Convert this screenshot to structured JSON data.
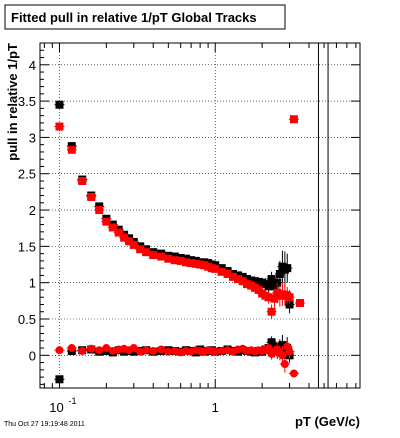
{
  "chart_data": {
    "type": "scatter",
    "title": "Fitted pull in relative 1/pT  Global Tracks",
    "xlabel": "pT (GeV/c)",
    "ylabel": "pull in relative 1/pT",
    "xscale": "log",
    "xlim": [
      0.075,
      8.5
    ],
    "ylim": [
      -0.45,
      4.3
    ],
    "grid": true,
    "timestamp": "Thu Oct 27 19:19:48 2011",
    "x_ticks": [
      {
        "value": 0.1,
        "label": "10",
        "exp": "-1"
      },
      {
        "value": 1,
        "label": "1",
        "exp": ""
      }
    ],
    "y_ticks": [
      {
        "value": 0,
        "label": "0"
      },
      {
        "value": 0.5,
        "label": "0.5"
      },
      {
        "value": 1,
        "label": "1"
      },
      {
        "value": 1.5,
        "label": "1.5"
      },
      {
        "value": 2,
        "label": "2"
      },
      {
        "value": 2.5,
        "label": "2.5"
      },
      {
        "value": 3,
        "label": "3"
      },
      {
        "value": 3.5,
        "label": "3.5"
      },
      {
        "value": 4,
        "label": "4"
      }
    ],
    "vertical_lines_x": [
      4.6,
      5.3
    ],
    "series": [
      {
        "color": "#000000",
        "role": "width",
        "x": [
          0.1,
          0.12,
          0.14,
          0.16,
          0.18,
          0.2,
          0.22,
          0.24,
          0.26,
          0.28,
          0.3,
          0.33,
          0.36,
          0.4,
          0.45,
          0.5,
          0.55,
          0.6,
          0.65,
          0.7,
          0.75,
          0.8,
          0.85,
          0.9,
          0.95,
          1.0,
          1.1,
          1.2,
          1.3,
          1.4,
          1.5,
          1.6,
          1.7,
          1.8,
          1.9,
          2.0,
          2.1,
          2.2,
          2.3,
          2.4,
          2.5,
          2.6,
          2.7,
          2.8,
          2.9,
          3.0
        ],
        "y": [
          3.45,
          2.88,
          2.42,
          2.2,
          2.05,
          1.88,
          1.8,
          1.73,
          1.66,
          1.61,
          1.56,
          1.5,
          1.46,
          1.42,
          1.4,
          1.37,
          1.36,
          1.34,
          1.33,
          1.31,
          1.3,
          1.28,
          1.28,
          1.27,
          1.25,
          1.24,
          1.2,
          1.16,
          1.12,
          1.1,
          1.08,
          1.05,
          1.03,
          1.02,
          1.01,
          1.0,
          0.98,
          0.95,
          1.05,
          0.95,
          1.0,
          1.12,
          1.22,
          1.18,
          1.2,
          0.7
        ],
        "yerr": [
          0.04,
          0.03,
          0.02,
          0.02,
          0.02,
          0.02,
          0.02,
          0.02,
          0.02,
          0.02,
          0.02,
          0.02,
          0.02,
          0.02,
          0.02,
          0.02,
          0.02,
          0.02,
          0.02,
          0.02,
          0.02,
          0.02,
          0.02,
          0.02,
          0.02,
          0.03,
          0.03,
          0.03,
          0.04,
          0.04,
          0.04,
          0.05,
          0.05,
          0.06,
          0.06,
          0.07,
          0.08,
          0.09,
          0.1,
          0.12,
          0.15,
          0.18,
          0.22,
          0.25,
          0.2,
          0.12
        ]
      },
      {
        "color": "#ff0000",
        "role": "width",
        "x": [
          0.1,
          0.12,
          0.14,
          0.16,
          0.18,
          0.2,
          0.22,
          0.24,
          0.26,
          0.28,
          0.3,
          0.33,
          0.36,
          0.4,
          0.45,
          0.5,
          0.55,
          0.6,
          0.65,
          0.7,
          0.75,
          0.8,
          0.85,
          0.9,
          0.95,
          1.0,
          1.1,
          1.2,
          1.3,
          1.4,
          1.5,
          1.6,
          1.7,
          1.8,
          1.9,
          2.0,
          2.1,
          2.2,
          2.3,
          2.4,
          2.5,
          2.6,
          2.7,
          2.8,
          2.9,
          3.0,
          3.2,
          3.5
        ],
        "y": [
          3.15,
          2.83,
          2.4,
          2.18,
          2.0,
          1.84,
          1.76,
          1.69,
          1.62,
          1.57,
          1.52,
          1.46,
          1.42,
          1.38,
          1.36,
          1.33,
          1.31,
          1.3,
          1.28,
          1.27,
          1.26,
          1.25,
          1.24,
          1.22,
          1.2,
          1.19,
          1.15,
          1.12,
          1.08,
          1.05,
          1.02,
          0.98,
          0.96,
          0.93,
          0.9,
          0.85,
          0.82,
          0.8,
          0.6,
          0.78,
          0.86,
          0.82,
          0.84,
          0.83,
          0.82,
          0.8,
          3.25,
          0.72
        ],
        "yerr": [
          0.04,
          0.03,
          0.02,
          0.02,
          0.02,
          0.02,
          0.02,
          0.02,
          0.02,
          0.02,
          0.02,
          0.02,
          0.02,
          0.02,
          0.02,
          0.02,
          0.02,
          0.02,
          0.02,
          0.02,
          0.02,
          0.02,
          0.02,
          0.02,
          0.02,
          0.03,
          0.03,
          0.03,
          0.04,
          0.04,
          0.04,
          0.05,
          0.05,
          0.06,
          0.06,
          0.07,
          0.08,
          0.09,
          0.1,
          0.12,
          0.14,
          0.15,
          0.16,
          0.15,
          0.12,
          0.1,
          0.05,
          0.05
        ]
      },
      {
        "color": "#000000",
        "role": "mean",
        "x": [
          0.1,
          0.12,
          0.14,
          0.16,
          0.18,
          0.2,
          0.22,
          0.24,
          0.26,
          0.28,
          0.3,
          0.33,
          0.36,
          0.4,
          0.45,
          0.5,
          0.55,
          0.6,
          0.65,
          0.7,
          0.75,
          0.8,
          0.85,
          0.9,
          0.95,
          1.0,
          1.1,
          1.2,
          1.3,
          1.4,
          1.5,
          1.6,
          1.7,
          1.8,
          1.9,
          2.0,
          2.1,
          2.2,
          2.3,
          2.4,
          2.5,
          2.6,
          2.7,
          2.8,
          2.9,
          3.0
        ],
        "y": [
          -0.33,
          0.06,
          0.07,
          0.08,
          0.05,
          0.06,
          0.04,
          0.07,
          0.05,
          0.06,
          0.05,
          0.06,
          0.07,
          0.05,
          0.06,
          0.07,
          0.06,
          0.05,
          0.07,
          0.06,
          0.04,
          0.08,
          0.05,
          0.06,
          0.07,
          0.05,
          0.06,
          0.08,
          0.06,
          0.05,
          0.07,
          0.06,
          0.05,
          0.04,
          0.06,
          0.05,
          0.08,
          0.1,
          0.18,
          0.12,
          0.05,
          0.1,
          0.14,
          0.08,
          0.1,
          0.0
        ],
        "yerr": [
          0.02,
          0.02,
          0.02,
          0.02,
          0.02,
          0.02,
          0.02,
          0.02,
          0.02,
          0.02,
          0.02,
          0.02,
          0.02,
          0.02,
          0.02,
          0.02,
          0.02,
          0.02,
          0.02,
          0.02,
          0.02,
          0.02,
          0.02,
          0.02,
          0.02,
          0.02,
          0.02,
          0.03,
          0.03,
          0.03,
          0.03,
          0.04,
          0.04,
          0.04,
          0.05,
          0.06,
          0.06,
          0.07,
          0.08,
          0.08,
          0.1,
          0.12,
          0.14,
          0.12,
          0.15,
          0.1
        ]
      },
      {
        "color": "#ff0000",
        "role": "mean",
        "x": [
          0.1,
          0.12,
          0.14,
          0.16,
          0.18,
          0.2,
          0.22,
          0.24,
          0.26,
          0.28,
          0.3,
          0.33,
          0.36,
          0.4,
          0.45,
          0.5,
          0.55,
          0.6,
          0.65,
          0.7,
          0.75,
          0.8,
          0.85,
          0.9,
          0.95,
          1.0,
          1.1,
          1.2,
          1.3,
          1.4,
          1.5,
          1.6,
          1.7,
          1.8,
          1.9,
          2.0,
          2.1,
          2.2,
          2.3,
          2.4,
          2.5,
          2.6,
          2.7,
          2.8,
          2.9,
          3.0,
          3.2
        ],
        "y": [
          0.07,
          0.1,
          0.06,
          0.09,
          0.07,
          0.1,
          0.06,
          0.08,
          0.09,
          0.07,
          0.1,
          0.05,
          0.07,
          0.06,
          0.08,
          0.05,
          0.06,
          0.04,
          0.06,
          0.05,
          0.07,
          0.06,
          0.05,
          0.07,
          0.06,
          0.05,
          0.06,
          0.07,
          0.05,
          0.08,
          0.09,
          0.06,
          0.07,
          0.05,
          0.07,
          0.06,
          0.08,
          0.1,
          0.02,
          0.05,
          0.08,
          0.03,
          0.0,
          -0.12,
          0.12,
          0.05,
          -0.25
        ],
        "yerr": [
          0.02,
          0.02,
          0.02,
          0.02,
          0.02,
          0.02,
          0.02,
          0.02,
          0.02,
          0.02,
          0.02,
          0.02,
          0.02,
          0.02,
          0.02,
          0.02,
          0.02,
          0.02,
          0.02,
          0.02,
          0.02,
          0.02,
          0.02,
          0.02,
          0.02,
          0.02,
          0.02,
          0.03,
          0.03,
          0.03,
          0.03,
          0.04,
          0.04,
          0.04,
          0.05,
          0.06,
          0.06,
          0.07,
          0.08,
          0.08,
          0.1,
          0.1,
          0.12,
          0.12,
          0.1,
          0.1,
          0.05
        ]
      }
    ]
  }
}
